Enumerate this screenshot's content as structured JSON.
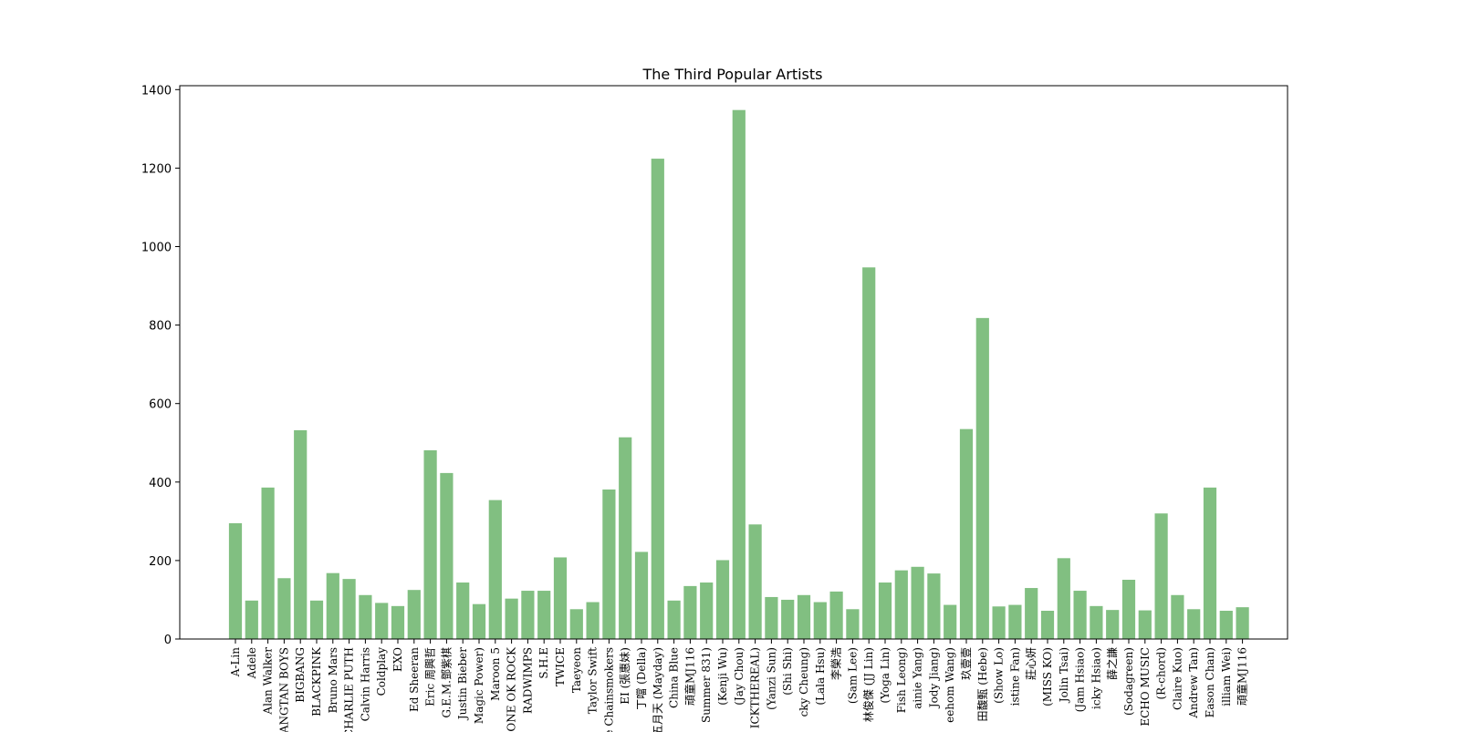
{
  "chart_data": {
    "type": "bar",
    "title": "The Third Popular Artists",
    "xlabel": "",
    "ylabel": "",
    "ylim": [
      0,
      1410
    ],
    "yticks": [
      0,
      200,
      400,
      600,
      800,
      1000,
      1200,
      1400
    ],
    "bar_color": "#81bf81",
    "grid": false,
    "categories": [
      "A-Lin",
      "Adele",
      "Alan Walker",
      "BANGTAN BOYS",
      "BIGBANG",
      "BLACKPINK",
      "Bruno Mars",
      "CHARLIE PUTH",
      "Calvin Harris",
      "Coldplay",
      "EXO",
      "Ed Sheeran",
      "Eric 周興哲",
      "G.E.M.鄧紫棋",
      "Justin Bieber",
      "Magic Power)",
      "Maroon 5",
      "ONE OK ROCK",
      "RADWIMPS",
      "S.H.E",
      "TWICE",
      "Taeyeon",
      "Taylor Swift",
      "The Chainsmokers",
      "EI (張惠妹)",
      "丁噹 (Della)",
      "五月天 (Mayday)",
      "China Blue",
      "頑童MJ116",
      "Summer 831)",
      "(Kenji Wu)",
      "(Jay Chou)",
      "ICKTHEREAL)",
      "(Yanzi Sun)",
      "(Shi Shi)",
      "cky Cheung)",
      "(Lala Hsu)",
      "李榮浩",
      "(Sam Lee)",
      "林俊傑 (JJ Lin)",
      "(Yoga Lin)",
      "Fish Leong)",
      "ainie Yang)",
      "Jody Jiang)",
      "eehom Wang)",
      "玖壹壹",
      "田馥甄 (Hebe)",
      "(Show Lo)",
      "istine Fan)",
      "莊心妍",
      "(MISS KO)",
      "Jolin Tsai)",
      "(Jam Hsiao)",
      "icky Hsiao)",
      "薛之謙",
      "(Sodagreen)",
      "ECHO MUSIC",
      "(R-chord)",
      "Claire Kuo)",
      "Andrew Tan)",
      "Eason Chan)",
      "illiam Wei)",
      "頑童MJ116"
    ],
    "values": [
      295,
      98,
      386,
      155,
      532,
      98,
      168,
      153,
      112,
      92,
      84,
      125,
      481,
      423,
      144,
      89,
      354,
      103,
      123,
      123,
      208,
      76,
      94,
      381,
      514,
      222,
      1224,
      98,
      135,
      144,
      201,
      1348,
      292,
      107,
      100,
      112,
      94,
      121,
      76,
      947,
      144,
      175,
      184,
      167,
      87,
      535,
      818,
      83,
      87,
      130,
      72,
      206,
      123,
      84,
      74,
      151,
      73,
      320,
      112,
      76,
      386,
      72,
      81
    ]
  }
}
